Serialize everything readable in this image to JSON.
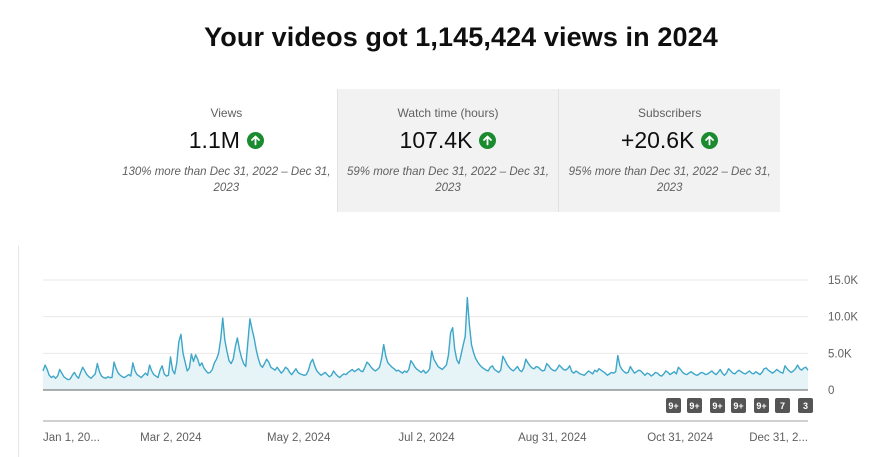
{
  "headline": "Your videos got 1,145,424 views in 2024",
  "cards": [
    {
      "label": "Views",
      "value": "1.1M",
      "trend": "up",
      "note": "130% more than Dec 31, 2022 – Dec 31, 2023"
    },
    {
      "label": "Watch time (hours)",
      "value": "107.4K",
      "trend": "up",
      "note": "59% more than Dec 31, 2022 – Dec 31, 2023"
    },
    {
      "label": "Subscribers",
      "value": "+20.6K",
      "trend": "up",
      "note": "95% more than Dec 31, 2022 – Dec 31, 2023"
    }
  ],
  "colors": {
    "line": "#3ea6c8",
    "fill": "#e6f4f8",
    "trend_up": "#1b8b2f",
    "badge": "#555555"
  },
  "badges": [
    "9+",
    "9+",
    "9+",
    "9+",
    "9+",
    "7",
    "3"
  ],
  "chart_data": {
    "type": "area",
    "series_name": "Views",
    "ylim": [
      0,
      15000
    ],
    "yticks": [
      {
        "value": 15000,
        "label": "15.0K"
      },
      {
        "value": 10000,
        "label": "10.0K"
      },
      {
        "value": 5000,
        "label": "5.0K"
      },
      {
        "value": 0,
        "label": "0"
      }
    ],
    "xrange": [
      0,
      365
    ],
    "xticks": [
      {
        "day": 0,
        "label": "Jan 1, 20..."
      },
      {
        "day": 61,
        "label": "Mar 2, 2024"
      },
      {
        "day": 122,
        "label": "May 2, 2024"
      },
      {
        "day": 183,
        "label": "Jul 2, 2024"
      },
      {
        "day": 243,
        "label": "Aug 31, 2024"
      },
      {
        "day": 304,
        "label": "Oct 31, 2024"
      },
      {
        "day": 365,
        "label": "Dec 31, 2..."
      }
    ],
    "grid": true,
    "daily_views": [
      2600,
      3400,
      2800,
      2000,
      1700,
      1900,
      1600,
      1900,
      2800,
      2300,
      1800,
      1600,
      1400,
      1500,
      2000,
      2400,
      1900,
      1600,
      2400,
      3100,
      2600,
      2100,
      1800,
      1600,
      1900,
      2200,
      3600,
      2500,
      1900,
      1700,
      1600,
      1800,
      1700,
      1700,
      3800,
      2900,
      2300,
      2000,
      1800,
      1700,
      1900,
      2100,
      1900,
      3700,
      2600,
      2100,
      1900,
      1700,
      2000,
      2300,
      2000,
      3400,
      2600,
      2100,
      1900,
      1700,
      2700,
      3300,
      2200,
      1900,
      2000,
      4500,
      2700,
      2200,
      3700,
      6600,
      7600,
      5000,
      3800,
      2600,
      3000,
      4900,
      3900,
      4800,
      4200,
      3300,
      3700,
      3000,
      2600,
      2300,
      2400,
      2800,
      3700,
      4200,
      5000,
      6900,
      9800,
      6800,
      5300,
      4000,
      3600,
      4200,
      5900,
      7100,
      5500,
      4400,
      3600,
      3200,
      6500,
      9700,
      8300,
      7100,
      5500,
      4300,
      3400,
      3100,
      3600,
      4200,
      3800,
      3100,
      2900,
      2700,
      3100,
      2700,
      2300,
      2600,
      3100,
      2900,
      2400,
      2100,
      2500,
      2900,
      2400,
      2200,
      2100,
      2000,
      2100,
      2700,
      3700,
      4200,
      3300,
      2600,
      2300,
      2000,
      2200,
      2400,
      2100,
      1800,
      2000,
      2600,
      2200,
      1900,
      1700,
      2000,
      2200,
      2100,
      2400,
      2600,
      2800,
      2500,
      2700,
      2900,
      2600,
      2500,
      3100,
      3800,
      3500,
      3100,
      2800,
      2600,
      2800,
      3100,
      4300,
      6200,
      4600,
      3700,
      3400,
      3100,
      2900,
      2600,
      2700,
      2500,
      2300,
      2600,
      2400,
      2800,
      4000,
      3600,
      3100,
      2800,
      2600,
      2400,
      2700,
      2300,
      2500,
      2900,
      5300,
      4200,
      3700,
      3200,
      3000,
      2800,
      3100,
      3400,
      4800,
      7800,
      8500,
      5500,
      4100,
      3600,
      4800,
      6100,
      7300,
      12600,
      8900,
      6200,
      5100,
      4300,
      3800,
      3400,
      3100,
      2900,
      2700,
      2600,
      3100,
      3300,
      2800,
      2600,
      2400,
      2700,
      4600,
      4100,
      3500,
      3100,
      2800,
      2600,
      2900,
      3200,
      2700,
      2500,
      3000,
      4200,
      3700,
      3300,
      3000,
      2900,
      3200,
      3100,
      2800,
      2600,
      2700,
      3600,
      3300,
      2900,
      2700,
      2600,
      2900,
      3400,
      3100,
      2800,
      2700,
      2900,
      3300,
      2500,
      2300,
      2600,
      2400,
      2200,
      2100,
      2000,
      2300,
      2600,
      2400,
      2200,
      2700,
      2500,
      2900,
      2700,
      2500,
      2300,
      2000,
      2200,
      2400,
      2300,
      2500,
      4700,
      3300,
      2800,
      2500,
      2300,
      2400,
      3200,
      2700,
      2300,
      2500,
      2700,
      2600,
      2300,
      2000,
      2300,
      2200,
      1900,
      2100,
      2400,
      2300,
      2000,
      1900,
      2200,
      2600,
      2400,
      2100,
      2300,
      2500,
      2200,
      3100,
      2800,
      2400,
      2200,
      2100,
      2300,
      2500,
      2300,
      2100,
      2000,
      2200,
      2400,
      2300,
      2100,
      2200,
      2400,
      2600,
      2300,
      2100,
      2400,
      2800,
      2300,
      2000,
      2300,
      2900,
      2600,
      2300,
      2200,
      2500,
      2700,
      2500,
      2300,
      2200,
      2400,
      2600,
      2300,
      2200,
      2500,
      2300,
      2100,
      2400,
      2900,
      3000,
      2700,
      2500,
      2300,
      2500,
      2800,
      2600,
      2400,
      2300,
      3300,
      2900,
      2600,
      2400,
      2600,
      2900,
      3400,
      2900,
      2700,
      3000,
      3100,
      2700
    ]
  }
}
